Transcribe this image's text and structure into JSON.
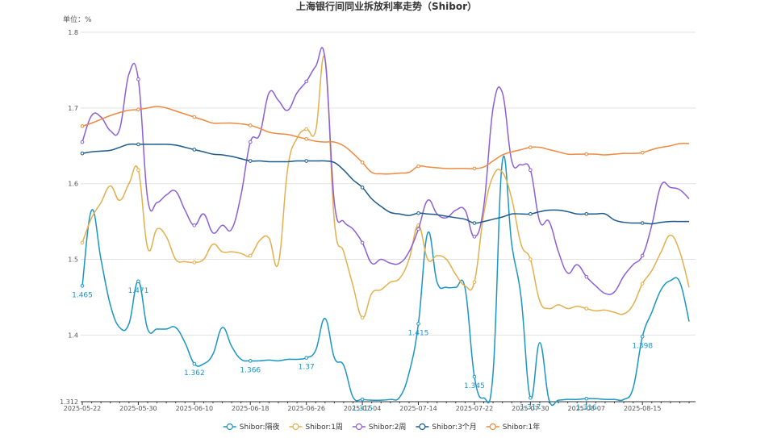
{
  "chart_data": {
    "type": "line",
    "title": "上海银行间同业拆放利率走势（Shibor）",
    "unit_label": "单位：%",
    "categories": [
      "2025-05-22",
      null,
      null,
      null,
      null,
      null,
      "2025-05-30",
      null,
      null,
      null,
      null,
      null,
      "2025-06-10",
      null,
      null,
      null,
      null,
      null,
      "2025-06-18",
      null,
      null,
      null,
      null,
      null,
      "2025-06-26",
      null,
      null,
      null,
      null,
      null,
      "2025-07-04",
      null,
      null,
      null,
      null,
      null,
      "2025-07-14",
      null,
      null,
      null,
      null,
      null,
      "2025-07-22",
      null,
      null,
      null,
      null,
      null,
      "2025-07-30",
      null,
      null,
      null,
      null,
      null,
      "2025-08-07",
      null,
      null,
      null,
      null,
      null,
      "2025-08-15",
      null,
      null,
      null,
      null,
      null
    ],
    "ylim": [
      1.312,
      1.8
    ],
    "yticks": [
      1.312,
      1.4,
      1.5,
      1.6,
      1.7,
      1.8
    ],
    "grid": true,
    "legend": "bottom",
    "series": [
      {
        "name": "Shibor:隔夜",
        "color": "#1a96c6",
        "labels": true,
        "values": [
          1.465,
          1.565,
          1.5,
          1.44,
          1.41,
          1.415,
          1.471,
          1.408,
          1.408,
          1.408,
          1.41,
          1.39,
          1.362,
          1.362,
          1.375,
          1.41,
          1.385,
          1.368,
          1.366,
          1.366,
          1.367,
          1.366,
          1.368,
          1.368,
          1.37,
          1.38,
          1.422,
          1.37,
          1.36,
          1.318,
          1.315,
          1.314,
          1.314,
          1.315,
          1.318,
          1.35,
          1.415,
          1.535,
          1.47,
          1.463,
          1.463,
          1.462,
          1.345,
          1.317,
          1.35,
          1.63,
          1.52,
          1.45,
          1.317,
          1.39,
          1.314,
          1.314,
          1.315,
          1.315,
          1.316,
          1.316,
          1.315,
          1.315,
          1.315,
          1.33,
          1.398,
          1.43,
          1.46,
          1.472,
          1.47,
          1.418
        ]
      },
      {
        "name": "Shibor:1周",
        "color": "#e3b04b",
        "values": [
          1.522,
          1.555,
          1.575,
          1.597,
          1.578,
          1.6,
          1.618,
          1.515,
          1.54,
          1.53,
          1.5,
          1.497,
          1.496,
          1.5,
          1.52,
          1.51,
          1.51,
          1.508,
          1.505,
          1.525,
          1.528,
          1.495,
          1.62,
          1.66,
          1.672,
          1.67,
          1.765,
          1.55,
          1.51,
          1.465,
          1.423,
          1.455,
          1.46,
          1.47,
          1.475,
          1.5,
          1.545,
          1.5,
          1.505,
          1.5,
          1.48,
          1.465,
          1.47,
          1.56,
          1.61,
          1.615,
          1.58,
          1.52,
          1.5,
          1.445,
          1.435,
          1.44,
          1.435,
          1.438,
          1.435,
          1.432,
          1.433,
          1.43,
          1.428,
          1.44,
          1.468,
          1.485,
          1.51,
          1.532,
          1.51,
          1.463
        ]
      },
      {
        "name": "Shibor:2周",
        "color": "#8c5fd8",
        "values": [
          1.655,
          1.69,
          1.688,
          1.67,
          1.672,
          1.745,
          1.738,
          1.58,
          1.575,
          1.585,
          1.59,
          1.565,
          1.545,
          1.56,
          1.535,
          1.545,
          1.54,
          1.585,
          1.655,
          1.665,
          1.72,
          1.71,
          1.697,
          1.72,
          1.735,
          1.755,
          1.765,
          1.575,
          1.55,
          1.54,
          1.522,
          1.495,
          1.5,
          1.495,
          1.495,
          1.51,
          1.54,
          1.578,
          1.56,
          1.555,
          1.565,
          1.565,
          1.53,
          1.57,
          1.7,
          1.72,
          1.63,
          1.625,
          1.618,
          1.55,
          1.55,
          1.51,
          1.482,
          1.493,
          1.477,
          1.465,
          1.455,
          1.457,
          1.478,
          1.493,
          1.505,
          1.545,
          1.598,
          1.595,
          1.592,
          1.58
        ]
      },
      {
        "name": "Shibor:3个月",
        "color": "#1d5a8c",
        "values": [
          1.64,
          1.642,
          1.643,
          1.644,
          1.648,
          1.652,
          1.652,
          1.652,
          1.652,
          1.652,
          1.651,
          1.648,
          1.645,
          1.642,
          1.639,
          1.638,
          1.636,
          1.633,
          1.63,
          1.63,
          1.629,
          1.629,
          1.629,
          1.63,
          1.63,
          1.63,
          1.63,
          1.628,
          1.618,
          1.605,
          1.595,
          1.58,
          1.57,
          1.562,
          1.56,
          1.558,
          1.561,
          1.56,
          1.559,
          1.557,
          1.555,
          1.553,
          1.548,
          1.55,
          1.553,
          1.556,
          1.56,
          1.56,
          1.56,
          1.563,
          1.565,
          1.565,
          1.563,
          1.56,
          1.56,
          1.56,
          1.56,
          1.552,
          1.549,
          1.548,
          1.548,
          1.547,
          1.549,
          1.55,
          1.55,
          1.55
        ]
      },
      {
        "name": "Shibor:1年",
        "color": "#ef8a3e",
        "values": [
          1.676,
          1.68,
          1.685,
          1.69,
          1.694,
          1.697,
          1.698,
          1.7,
          1.702,
          1.7,
          1.696,
          1.692,
          1.688,
          1.684,
          1.68,
          1.68,
          1.68,
          1.679,
          1.677,
          1.673,
          1.668,
          1.666,
          1.665,
          1.662,
          1.659,
          1.656,
          1.655,
          1.655,
          1.65,
          1.64,
          1.628,
          1.615,
          1.613,
          1.613,
          1.614,
          1.615,
          1.623,
          1.622,
          1.621,
          1.62,
          1.62,
          1.62,
          1.62,
          1.622,
          1.63,
          1.638,
          1.642,
          1.645,
          1.648,
          1.648,
          1.645,
          1.642,
          1.639,
          1.639,
          1.639,
          1.639,
          1.638,
          1.639,
          1.64,
          1.64,
          1.641,
          1.645,
          1.648,
          1.65,
          1.653,
          1.653
        ]
      }
    ]
  }
}
